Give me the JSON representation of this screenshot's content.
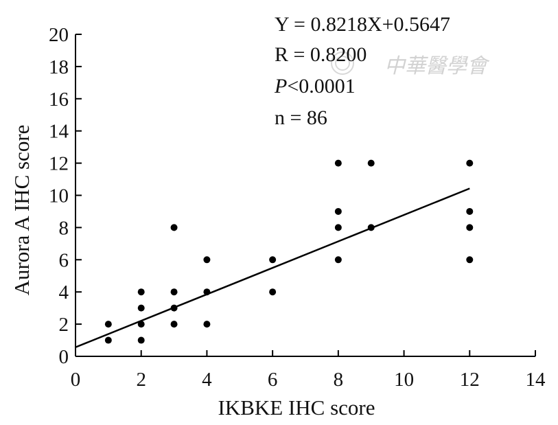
{
  "chart_data": {
    "type": "scatter",
    "xlabel": "IKBKE IHC score",
    "ylabel": "Aurora A IHC score",
    "xlim": [
      0,
      14
    ],
    "ylim": [
      0,
      20
    ],
    "xticks": [
      0,
      2,
      4,
      6,
      8,
      10,
      12,
      14
    ],
    "yticks": [
      0,
      2,
      4,
      6,
      8,
      10,
      12,
      14,
      16,
      18,
      20
    ],
    "grid": false,
    "points": [
      {
        "x": 1,
        "y": 1
      },
      {
        "x": 1,
        "y": 2
      },
      {
        "x": 2,
        "y": 1
      },
      {
        "x": 2,
        "y": 2
      },
      {
        "x": 2,
        "y": 3
      },
      {
        "x": 2,
        "y": 4
      },
      {
        "x": 3,
        "y": 2
      },
      {
        "x": 3,
        "y": 3
      },
      {
        "x": 3,
        "y": 4
      },
      {
        "x": 3,
        "y": 8
      },
      {
        "x": 4,
        "y": 2
      },
      {
        "x": 4,
        "y": 4
      },
      {
        "x": 4,
        "y": 6
      },
      {
        "x": 6,
        "y": 4
      },
      {
        "x": 6,
        "y": 6
      },
      {
        "x": 8,
        "y": 6
      },
      {
        "x": 8,
        "y": 8
      },
      {
        "x": 8,
        "y": 9
      },
      {
        "x": 8,
        "y": 12
      },
      {
        "x": 9,
        "y": 8
      },
      {
        "x": 9,
        "y": 12
      },
      {
        "x": 12,
        "y": 6
      },
      {
        "x": 12,
        "y": 8
      },
      {
        "x": 12,
        "y": 9
      },
      {
        "x": 12,
        "y": 12
      }
    ],
    "fit_line": {
      "slope": 0.8218,
      "intercept": 0.5647,
      "x_range": [
        0,
        12
      ]
    },
    "annotations": {
      "equation": "Y = 0.8218X+0.5647",
      "r": "R = 0.8200",
      "p_symbol": "P",
      "p_value": "<0.0001",
      "n": "n = 86"
    },
    "watermark": "中華醫學會"
  },
  "colors": {
    "marker": "#000000",
    "line": "#000000",
    "axis": "#000000",
    "watermark": "#d2d2d2"
  }
}
